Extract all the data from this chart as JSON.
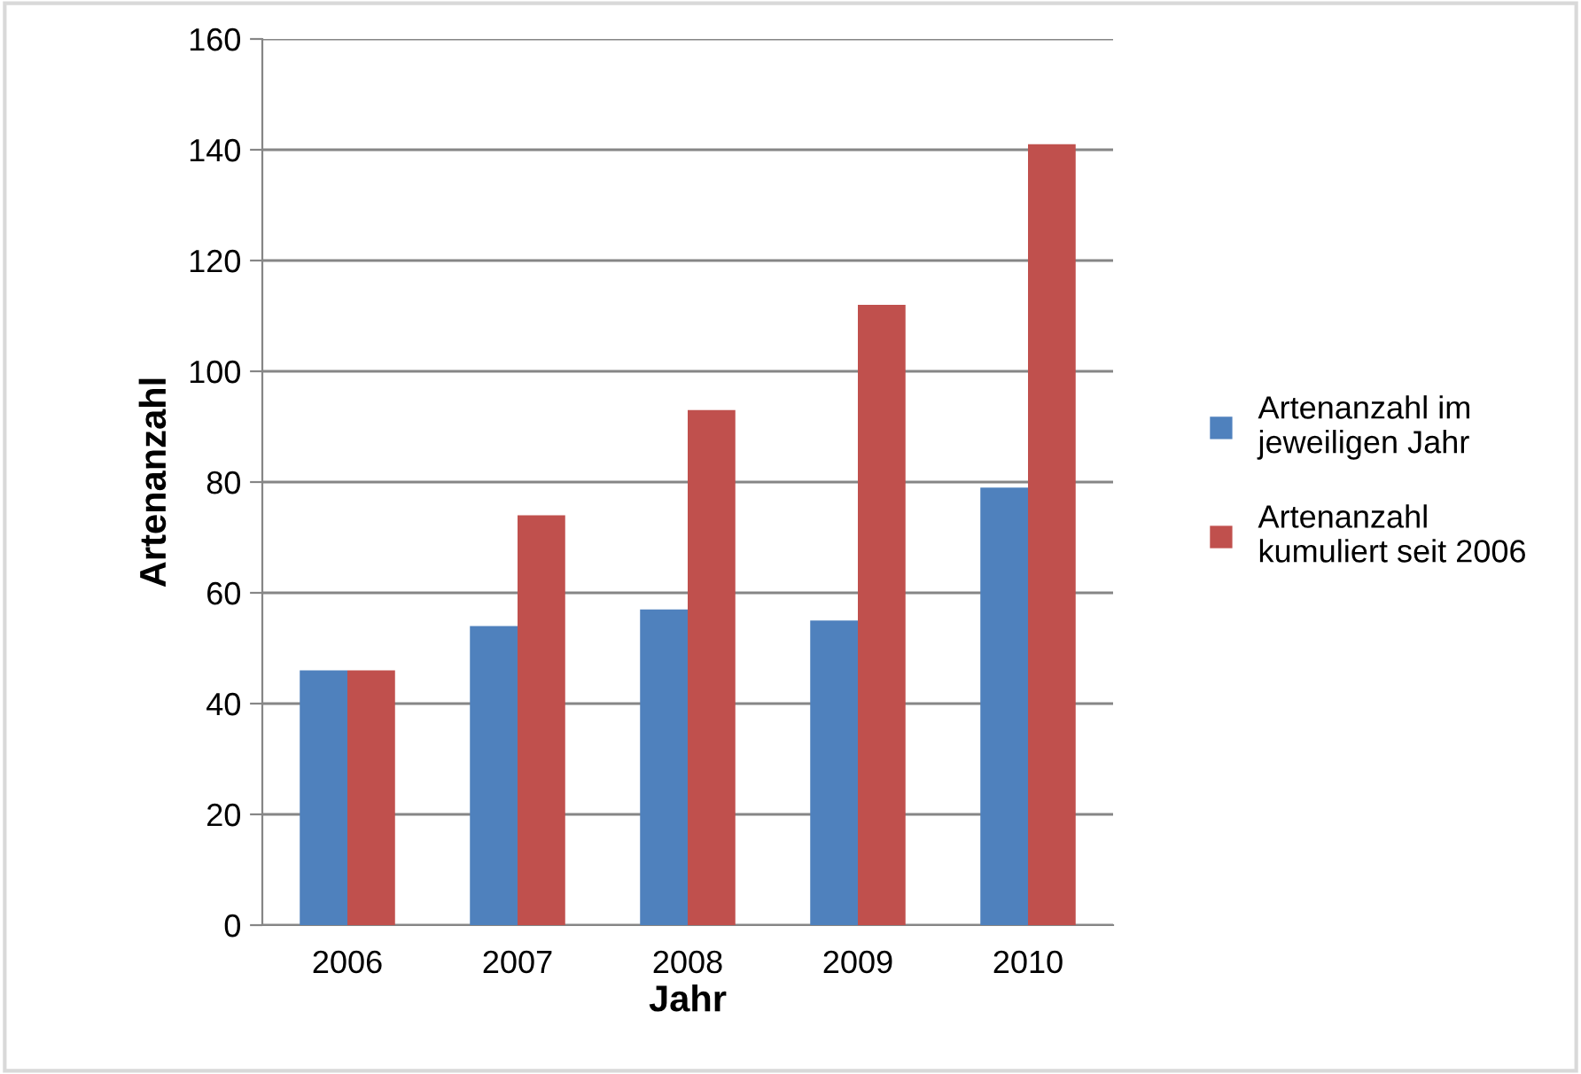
{
  "chart_data": {
    "type": "bar",
    "xlabel": "Jahr",
    "ylabel": "Artenanzahl",
    "categories": [
      "2006",
      "2007",
      "2008",
      "2009",
      "2010"
    ],
    "series": [
      {
        "name": "Artenanzahl im jeweiligen Jahr",
        "color": "#4f81bd",
        "values": [
          46,
          54,
          57,
          55,
          79
        ]
      },
      {
        "name": "Artenanzahl kumuliert seit 2006",
        "color": "#c0504d",
        "values": [
          46,
          74,
          93,
          112,
          141
        ]
      }
    ],
    "ylim": [
      0,
      160
    ],
    "yticks": [
      0,
      20,
      40,
      60,
      80,
      100,
      120,
      140,
      160
    ],
    "grid": "y",
    "legend": "right"
  }
}
